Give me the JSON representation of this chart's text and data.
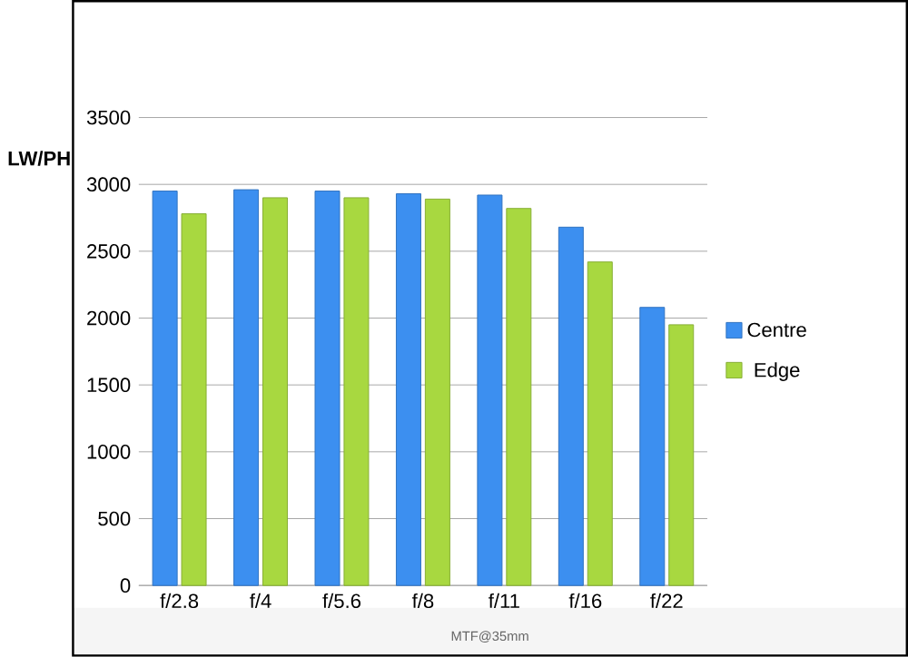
{
  "chart_data": {
    "type": "bar",
    "ylabel": "LW/PH",
    "categories": [
      "f/2.8",
      "f/4",
      "f/5.6",
      "f/8",
      "f/11",
      "f/16",
      "f/22"
    ],
    "series": [
      {
        "name": "Centre",
        "color": "#3c8ff0",
        "values": [
          2950,
          2960,
          2950,
          2930,
          2920,
          2680,
          2080
        ]
      },
      {
        "name": "Edge",
        "color": "#a8d840",
        "values": [
          2780,
          2900,
          2900,
          2890,
          2820,
          2420,
          1950
        ]
      }
    ],
    "ylim": [
      0,
      3500
    ],
    "yticks": [
      0,
      500,
      1000,
      1500,
      2000,
      2500,
      3000,
      3500
    ],
    "grid": "y",
    "legend": "right",
    "annotations": [
      "MTF@35mm"
    ]
  }
}
